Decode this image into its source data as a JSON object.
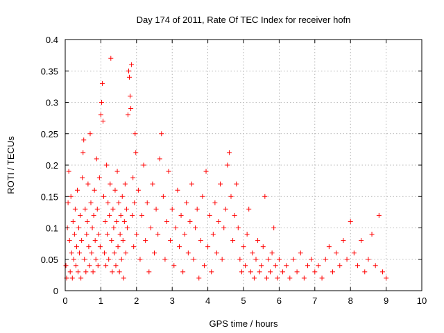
{
  "chart_data": {
    "type": "scatter",
    "title": "Day 174 of 2011, Rate Of TEC Index for receiver hofn",
    "xlabel": "GPS time / hours",
    "ylabel": "ROTI / TECUs",
    "xlim": [
      0,
      10
    ],
    "ylim": [
      0,
      0.4
    ],
    "xticks": [
      0,
      1,
      2,
      3,
      4,
      5,
      6,
      7,
      8,
      9,
      10
    ],
    "yticks": [
      0,
      0.05,
      0.1,
      0.15,
      0.2,
      0.25,
      0.3,
      0.35,
      0.4
    ],
    "xtick_labels": [
      "0",
      "1",
      "2",
      "3",
      "4",
      "5",
      "6",
      "7",
      "8",
      "9",
      "10"
    ],
    "ytick_labels": [
      "0",
      "0.05",
      "0.1",
      "0.15",
      "0.2",
      "0.25",
      "0.3",
      "0.35",
      "0.4"
    ],
    "grid": true,
    "marker": "+",
    "color": "#ff0000",
    "series": [
      {
        "name": "ROTI",
        "points": [
          [
            0.02,
            0.04
          ],
          [
            0.04,
            0.02
          ],
          [
            0.06,
            0.1
          ],
          [
            0.08,
            0.14
          ],
          [
            0.1,
            0.19
          ],
          [
            0.12,
            0.08
          ],
          [
            0.14,
            0.03
          ],
          [
            0.16,
            0.15
          ],
          [
            0.18,
            0.06
          ],
          [
            0.2,
            0.02
          ],
          [
            0.22,
            0.11
          ],
          [
            0.24,
            0.05
          ],
          [
            0.26,
            0.09
          ],
          [
            0.28,
            0.13
          ],
          [
            0.3,
            0.04
          ],
          [
            0.32,
            0.07
          ],
          [
            0.34,
            0.16
          ],
          [
            0.36,
            0.03
          ],
          [
            0.38,
            0.1
          ],
          [
            0.4,
            0.06
          ],
          [
            0.42,
            0.12
          ],
          [
            0.44,
            0.02
          ],
          [
            0.46,
            0.08
          ],
          [
            0.48,
            0.18
          ],
          [
            0.5,
            0.22
          ],
          [
            0.52,
            0.24
          ],
          [
            0.54,
            0.05
          ],
          [
            0.56,
            0.13
          ],
          [
            0.58,
            0.03
          ],
          [
            0.6,
            0.09
          ],
          [
            0.62,
            0.11
          ],
          [
            0.64,
            0.17
          ],
          [
            0.66,
            0.07
          ],
          [
            0.68,
            0.04
          ],
          [
            0.7,
            0.25
          ],
          [
            0.72,
            0.14
          ],
          [
            0.74,
            0.06
          ],
          [
            0.76,
            0.1
          ],
          [
            0.78,
            0.03
          ],
          [
            0.8,
            0.12
          ],
          [
            0.82,
            0.16
          ],
          [
            0.84,
            0.08
          ],
          [
            0.86,
            0.05
          ],
          [
            0.88,
            0.21
          ],
          [
            0.9,
            0.13
          ],
          [
            0.92,
            0.04
          ],
          [
            0.94,
            0.09
          ],
          [
            0.96,
            0.18
          ],
          [
            0.98,
            0.07
          ],
          [
            1.0,
            0.28
          ],
          [
            1.02,
            0.3
          ],
          [
            1.04,
            0.33
          ],
          [
            1.06,
            0.27
          ],
          [
            1.08,
            0.15
          ],
          [
            1.1,
            0.06
          ],
          [
            1.12,
            0.11
          ],
          [
            1.14,
            0.04
          ],
          [
            1.16,
            0.2
          ],
          [
            1.18,
            0.09
          ],
          [
            1.2,
            0.14
          ],
          [
            1.22,
            0.05
          ],
          [
            1.24,
            0.12
          ],
          [
            1.26,
            0.17
          ],
          [
            1.28,
            0.37
          ],
          [
            1.3,
            0.08
          ],
          [
            1.32,
            0.03
          ],
          [
            1.34,
            0.13
          ],
          [
            1.36,
            0.1
          ],
          [
            1.38,
            0.06
          ],
          [
            1.4,
            0.16
          ],
          [
            1.42,
            0.04
          ],
          [
            1.44,
            0.11
          ],
          [
            1.46,
            0.19
          ],
          [
            1.48,
            0.07
          ],
          [
            1.5,
            0.14
          ],
          [
            1.52,
            0.03
          ],
          [
            1.54,
            0.09
          ],
          [
            1.56,
            0.12
          ],
          [
            1.58,
            0.05
          ],
          [
            1.6,
            0.15
          ],
          [
            1.62,
            0.08
          ],
          [
            1.64,
            0.02
          ],
          [
            1.66,
            0.11
          ],
          [
            1.68,
            0.17
          ],
          [
            1.7,
            0.06
          ],
          [
            1.72,
            0.13
          ],
          [
            1.74,
            0.1
          ],
          [
            1.76,
            0.28
          ],
          [
            1.78,
            0.35
          ],
          [
            1.8,
            0.34
          ],
          [
            1.82,
            0.31
          ],
          [
            1.84,
            0.29
          ],
          [
            1.86,
            0.36
          ],
          [
            1.88,
            0.12
          ],
          [
            1.9,
            0.18
          ],
          [
            1.92,
            0.07
          ],
          [
            1.94,
            0.14
          ],
          [
            1.96,
            0.25
          ],
          [
            1.98,
            0.22
          ],
          [
            2.0,
            0.09
          ],
          [
            2.05,
            0.16
          ],
          [
            2.1,
            0.05
          ],
          [
            2.15,
            0.12
          ],
          [
            2.2,
            0.2
          ],
          [
            2.25,
            0.08
          ],
          [
            2.3,
            0.14
          ],
          [
            2.35,
            0.03
          ],
          [
            2.4,
            0.1
          ],
          [
            2.45,
            0.17
          ],
          [
            2.5,
            0.06
          ],
          [
            2.55,
            0.13
          ],
          [
            2.6,
            0.09
          ],
          [
            2.65,
            0.21
          ],
          [
            2.7,
            0.25
          ],
          [
            2.75,
            0.15
          ],
          [
            2.8,
            0.05
          ],
          [
            2.85,
            0.11
          ],
          [
            2.9,
            0.19
          ],
          [
            2.95,
            0.08
          ],
          [
            3.0,
            0.13
          ],
          [
            3.05,
            0.04
          ],
          [
            3.1,
            0.1
          ],
          [
            3.15,
            0.16
          ],
          [
            3.2,
            0.07
          ],
          [
            3.25,
            0.12
          ],
          [
            3.3,
            0.03
          ],
          [
            3.35,
            0.09
          ],
          [
            3.4,
            0.14
          ],
          [
            3.45,
            0.06
          ],
          [
            3.5,
            0.11
          ],
          [
            3.55,
            0.17
          ],
          [
            3.6,
            0.05
          ],
          [
            3.65,
            0.1
          ],
          [
            3.7,
            0.13
          ],
          [
            3.75,
            0.02
          ],
          [
            3.8,
            0.08
          ],
          [
            3.85,
            0.15
          ],
          [
            3.9,
            0.04
          ],
          [
            3.95,
            0.19
          ],
          [
            4.0,
            0.07
          ],
          [
            4.05,
            0.12
          ],
          [
            4.1,
            0.03
          ],
          [
            4.15,
            0.09
          ],
          [
            4.2,
            0.14
          ],
          [
            4.25,
            0.06
          ],
          [
            4.3,
            0.11
          ],
          [
            4.35,
            0.17
          ],
          [
            4.4,
            0.05
          ],
          [
            4.45,
            0.1
          ],
          [
            4.5,
            0.13
          ],
          [
            4.55,
            0.2
          ],
          [
            4.6,
            0.22
          ],
          [
            4.65,
            0.15
          ],
          [
            4.7,
            0.08
          ],
          [
            4.75,
            0.12
          ],
          [
            4.8,
            0.17
          ],
          [
            4.85,
            0.1
          ],
          [
            4.9,
            0.05
          ],
          [
            4.95,
            0.03
          ],
          [
            5.0,
            0.07
          ],
          [
            5.05,
            0.04
          ],
          [
            5.1,
            0.09
          ],
          [
            5.15,
            0.13
          ],
          [
            5.2,
            0.03
          ],
          [
            5.25,
            0.06
          ],
          [
            5.3,
            0.02
          ],
          [
            5.35,
            0.05
          ],
          [
            5.4,
            0.08
          ],
          [
            5.45,
            0.03
          ],
          [
            5.5,
            0.04
          ],
          [
            5.55,
            0.07
          ],
          [
            5.6,
            0.15
          ],
          [
            5.65,
            0.02
          ],
          [
            5.7,
            0.05
          ],
          [
            5.75,
            0.03
          ],
          [
            5.8,
            0.06
          ],
          [
            5.85,
            0.1
          ],
          [
            5.9,
            0.04
          ],
          [
            5.95,
            0.02
          ],
          [
            6.0,
            0.05
          ],
          [
            6.1,
            0.03
          ],
          [
            6.2,
            0.04
          ],
          [
            6.3,
            0.02
          ],
          [
            6.4,
            0.05
          ],
          [
            6.5,
            0.03
          ],
          [
            6.6,
            0.06
          ],
          [
            6.7,
            0.02
          ],
          [
            6.8,
            0.04
          ],
          [
            6.9,
            0.05
          ],
          [
            7.0,
            0.03
          ],
          [
            7.1,
            0.04
          ],
          [
            7.2,
            0.02
          ],
          [
            7.3,
            0.05
          ],
          [
            7.4,
            0.07
          ],
          [
            7.5,
            0.03
          ],
          [
            7.6,
            0.06
          ],
          [
            7.7,
            0.04
          ],
          [
            7.8,
            0.08
          ],
          [
            7.9,
            0.05
          ],
          [
            8.0,
            0.11
          ],
          [
            8.1,
            0.06
          ],
          [
            8.2,
            0.04
          ],
          [
            8.3,
            0.08
          ],
          [
            8.4,
            0.03
          ],
          [
            8.5,
            0.05
          ],
          [
            8.6,
            0.09
          ],
          [
            8.7,
            0.04
          ],
          [
            8.8,
            0.12
          ],
          [
            8.9,
            0.03
          ],
          [
            9.0,
            0.02
          ]
        ]
      }
    ]
  }
}
